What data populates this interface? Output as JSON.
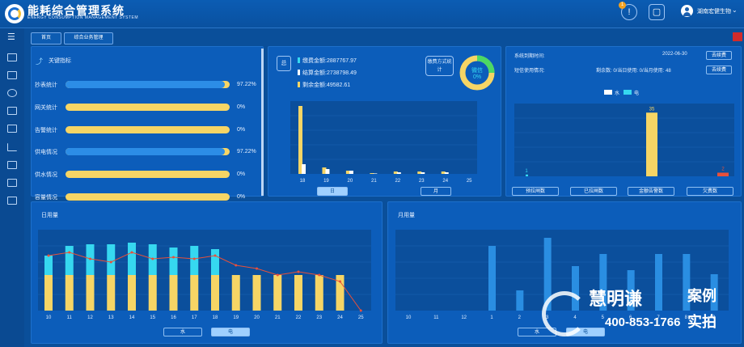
{
  "header": {
    "title": "能耗综合管理系统",
    "subtitle": "ENERGY CONSUMPTION MANAGEMENT SYSTEM",
    "notification_count": "1",
    "user": "湖南宏健生物"
  },
  "colors": {
    "yellow": "#f6d565",
    "blue": "#2c8de6",
    "cyan": "#36d8f0",
    "red": "#e8503a",
    "bar_blue": "#2a8ee2"
  },
  "breadcrumbs": [
    "首页",
    "综合业务管理"
  ],
  "kpi": {
    "title": "关键指标",
    "items": [
      {
        "label": "抄表统计",
        "value": "97.22%",
        "fraction": 0.9722
      },
      {
        "label": "网关统计",
        "value": "0%",
        "fraction": 0
      },
      {
        "label": "告警统计",
        "value": "0%",
        "fraction": 0
      },
      {
        "label": "供电情况",
        "value": "97.22%",
        "fraction": 0.9722
      },
      {
        "label": "供水情况",
        "value": "0%",
        "fraction": 0
      },
      {
        "label": "容量情况",
        "value": "0%",
        "fraction": 0
      }
    ]
  },
  "payment": {
    "total_tag": "总",
    "lines": [
      "缴费金额:2887767.97",
      "结算金额:2738798.49",
      "剩余金额:49582.61"
    ],
    "method_label": "缴费方式统计",
    "donut": {
      "label": "微信",
      "value": "0%"
    },
    "tabs": [
      "日",
      "月"
    ]
  },
  "system": {
    "expire_label": "系统到期时间:",
    "expire_date": "2022-06-30",
    "renew1": "去续费",
    "sms_label": "短信使用情况:",
    "sms_detail": "剩余数: 0/当日使用: 0/当月使用: 48",
    "renew2": "去续费",
    "legend": [
      "水",
      "电"
    ],
    "tabs": [
      "预拉闸数",
      "已拉闸数",
      "金额告警数",
      "欠费数"
    ]
  },
  "daily": {
    "title": "日用量",
    "tabs": [
      "水",
      "电"
    ]
  },
  "monthly": {
    "title": "月用量",
    "tabs": [
      "水",
      "电"
    ]
  },
  "watermark": {
    "brand": "慧明谦",
    "tag1": "案例",
    "tag2": "实拍",
    "phone": "400-853-1766"
  },
  "chart_data": [
    {
      "type": "bar",
      "categories": [
        "18",
        "19",
        "20",
        "21",
        "22",
        "23",
        "24",
        "25"
      ],
      "series": [
        {
          "values": [
            42,
            4,
            2,
            0.5,
            1.5,
            1.5,
            1.5,
            0
          ]
        },
        {
          "values": [
            6,
            3,
            2,
            0.3,
            1,
            1,
            1,
            0
          ]
        }
      ]
    },
    {
      "type": "bar",
      "categories": [
        "",
        "",
        "",
        ""
      ],
      "legend": [
        "水",
        "电"
      ],
      "series": [
        {
          "name": "水",
          "values": [
            1,
            0,
            35,
            0
          ]
        },
        {
          "name": "电",
          "values": [
            0,
            0,
            0,
            2
          ]
        }
      ],
      "data_labels": [
        "1",
        "",
        "35",
        "2"
      ]
    },
    {
      "type": "bar",
      "categories": [
        "10",
        "11",
        "12",
        "13",
        "14",
        "15",
        "16",
        "17",
        "18",
        "19",
        "20",
        "21",
        "22",
        "23",
        "24",
        "25"
      ],
      "series": [
        {
          "name": "电",
          "values": [
            22,
            22,
            22,
            22,
            22,
            22,
            22,
            22,
            22,
            22,
            22,
            22,
            22,
            22,
            22,
            0
          ]
        },
        {
          "name": "水",
          "values": [
            12,
            18,
            19,
            19,
            20,
            19,
            17,
            18,
            16,
            0,
            0,
            0,
            0,
            0,
            0,
            0
          ]
        }
      ],
      "line": [
        34,
        36,
        32,
        30,
        36,
        32,
        33,
        32,
        34,
        28,
        26,
        22,
        24,
        22,
        18,
        0
      ],
      "ylim": [
        0,
        50
      ]
    },
    {
      "type": "bar",
      "categories": [
        "10",
        "11",
        "12",
        "1",
        "2",
        "3",
        "4",
        "5",
        "6",
        "7",
        "8",
        "9"
      ],
      "series": [
        {
          "name": "电",
          "values": [
            0,
            0,
            0,
            80,
            25,
            90,
            55,
            70,
            50,
            70,
            70,
            45
          ]
        }
      ],
      "ylim": [
        0,
        100
      ]
    }
  ]
}
